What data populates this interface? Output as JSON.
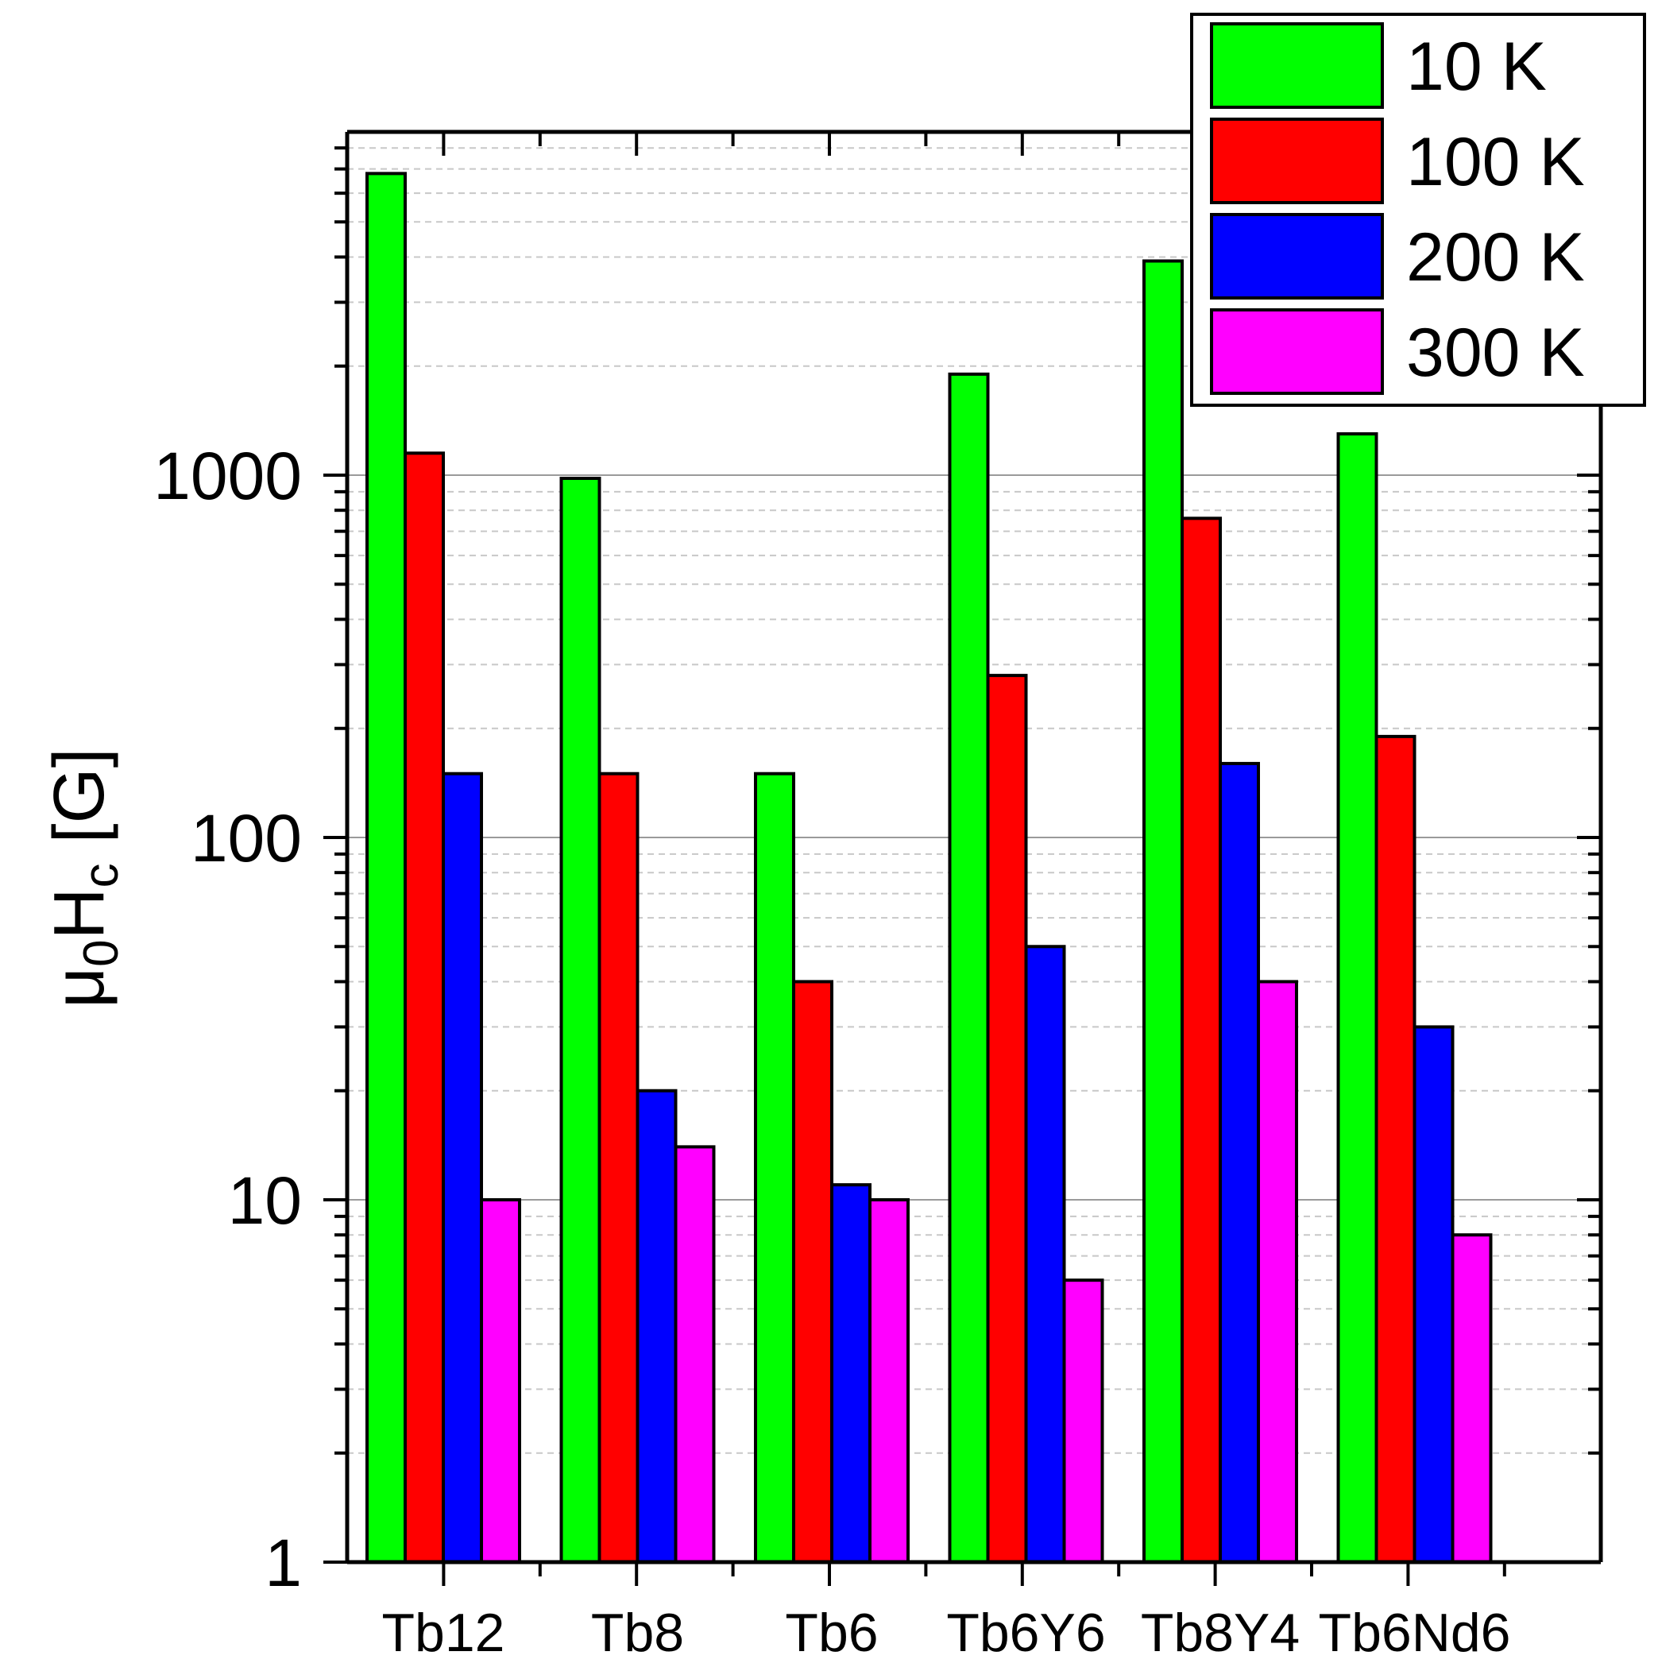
{
  "chart_data": {
    "type": "bar",
    "title": "",
    "xlabel": "",
    "ylabel": {
      "mu": "μ",
      "mu_sub": "0",
      "h": "H",
      "h_sub": "c",
      "unit": " [G]"
    },
    "y_scale": "log",
    "ylim": [
      1,
      8000
    ],
    "y_ticks": [
      1,
      10,
      100,
      1000
    ],
    "y_tick_labels": [
      "1",
      "10",
      "100",
      "1000"
    ],
    "grid": "horizontal, major solid and minor dashed",
    "legend_position": "top-right",
    "categories": [
      "Tb12",
      "Tb8",
      "Tb6",
      "Tb6Y6",
      "Tb8Y4",
      "Tb6Nd6"
    ],
    "series": [
      {
        "name": "10 K",
        "color": "#00ff00",
        "values": [
          6800,
          980,
          150,
          1900,
          3900,
          1300
        ]
      },
      {
        "name": "100 K",
        "color": "#ff0000",
        "values": [
          1150,
          150,
          40,
          280,
          760,
          190
        ]
      },
      {
        "name": "200 K",
        "color": "#0000ff",
        "values": [
          150,
          20,
          11,
          50,
          160,
          30
        ]
      },
      {
        "name": "300 K",
        "color": "#ff00ff",
        "values": [
          10,
          14,
          10,
          6,
          40,
          8
        ]
      }
    ]
  }
}
